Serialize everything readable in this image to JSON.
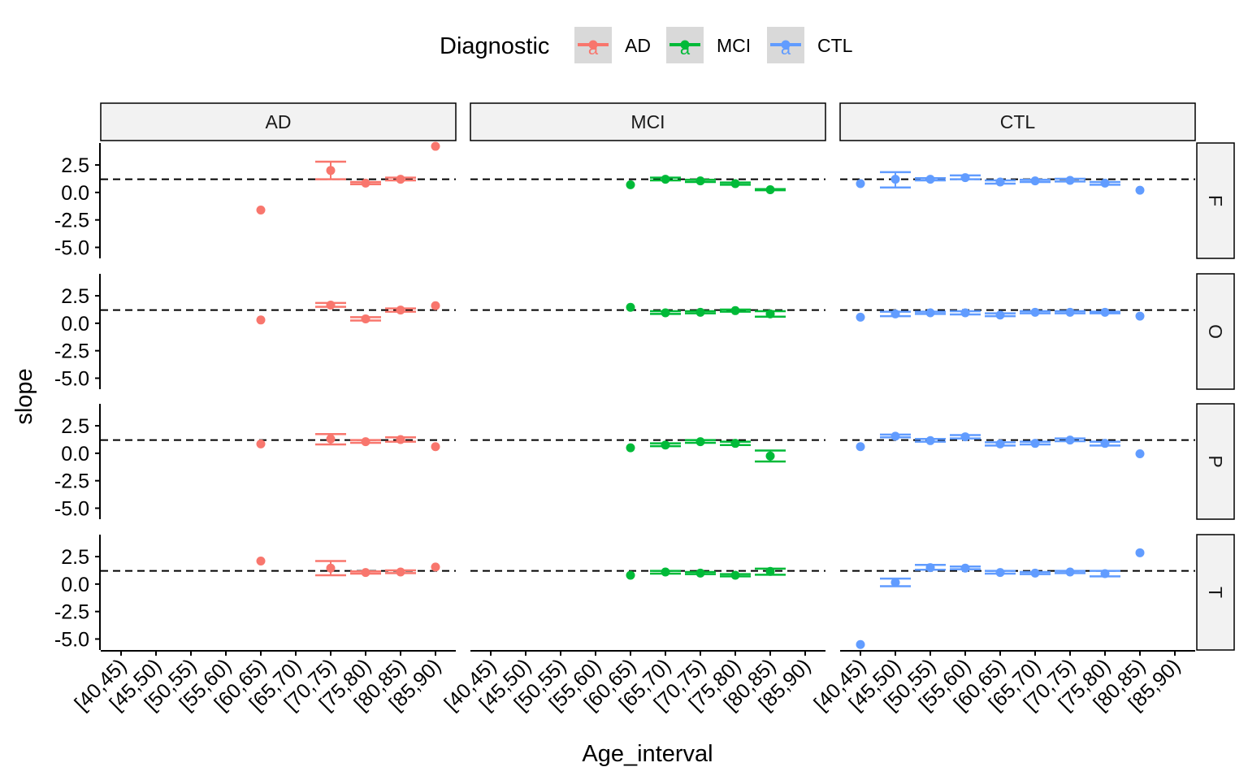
{
  "legend": {
    "title": "Diagnostic",
    "items": [
      {
        "label": "AD",
        "color": "#F8766D",
        "key_glyph": "a"
      },
      {
        "label": "MCI",
        "color": "#00BA38",
        "key_glyph": "a"
      },
      {
        "label": "CTL",
        "color": "#619CFF",
        "key_glyph": "a"
      }
    ]
  },
  "chart_data": {
    "type": "scatter",
    "subtype": "faceted point range with error bars",
    "xlabel": "Age_interval",
    "ylabel": "slope",
    "x_categories": [
      "[40,45)",
      "[45,50)",
      "[50,55)",
      "[55,60)",
      "[60,65)",
      "[65,70)",
      "[70,75)",
      "[75,80)",
      "[80,85)",
      "[85,90)"
    ],
    "y_ticks": [
      "2.5",
      "0.0",
      "-2.5",
      "-5.0"
    ],
    "y_tick_values": [
      2.5,
      0.0,
      -2.5,
      -5.0
    ],
    "ylim": [
      -6.0,
      4.5
    ],
    "reference_line": {
      "y": 1.2,
      "style": "dashed"
    },
    "facet_columns": [
      "AD",
      "MCI",
      "CTL"
    ],
    "facet_rows": [
      "F",
      "O",
      "P",
      "T"
    ],
    "grid": false,
    "legend_position": "top",
    "panels": [
      {
        "column": "AD",
        "row": "F",
        "color": "#F8766D",
        "points": [
          {
            "x": "[60,65)",
            "y": -1.6
          },
          {
            "x": "[70,75)",
            "y": 2.0,
            "ymin": 1.2,
            "ymax": 2.8
          },
          {
            "x": "[75,80)",
            "y": 0.85,
            "ymin": 0.75,
            "ymax": 0.95
          },
          {
            "x": "[80,85)",
            "y": 1.2,
            "ymin": 1.1,
            "ymax": 1.35
          },
          {
            "x": "[85,90)",
            "y": 4.2
          }
        ]
      },
      {
        "column": "MCI",
        "row": "F",
        "color": "#00BA38",
        "points": [
          {
            "x": "[60,65)",
            "y": 0.7
          },
          {
            "x": "[65,70)",
            "y": 1.2,
            "ymin": 1.1,
            "ymax": 1.35
          },
          {
            "x": "[70,75)",
            "y": 1.05,
            "ymin": 0.95,
            "ymax": 1.15
          },
          {
            "x": "[75,80)",
            "y": 0.8,
            "ymin": 0.7,
            "ymax": 0.9
          },
          {
            "x": "[80,85)",
            "y": 0.25,
            "ymin": 0.2,
            "ymax": 0.3
          }
        ]
      },
      {
        "column": "CTL",
        "row": "F",
        "color": "#619CFF",
        "points": [
          {
            "x": "[40,45)",
            "y": 0.8
          },
          {
            "x": "[45,50)",
            "y": 1.2,
            "ymin": 0.45,
            "ymax": 1.85
          },
          {
            "x": "[50,55)",
            "y": 1.2,
            "ymin": 1.1,
            "ymax": 1.3
          },
          {
            "x": "[55,60)",
            "y": 1.35,
            "ymin": 1.2,
            "ymax": 1.55
          },
          {
            "x": "[60,65)",
            "y": 0.95,
            "ymin": 0.8,
            "ymax": 1.1
          },
          {
            "x": "[65,70)",
            "y": 1.05,
            "ymin": 0.95,
            "ymax": 1.15
          },
          {
            "x": "[70,75)",
            "y": 1.1,
            "ymin": 1.0,
            "ymax": 1.25
          },
          {
            "x": "[75,80)",
            "y": 0.85,
            "ymin": 0.7,
            "ymax": 0.95
          },
          {
            "x": "[80,85)",
            "y": 0.2
          }
        ]
      },
      {
        "column": "AD",
        "row": "O",
        "color": "#F8766D",
        "points": [
          {
            "x": "[60,65)",
            "y": 0.3
          },
          {
            "x": "[70,75)",
            "y": 1.65,
            "ymin": 1.5,
            "ymax": 1.85
          },
          {
            "x": "[75,80)",
            "y": 0.4,
            "ymin": 0.25,
            "ymax": 0.55
          },
          {
            "x": "[80,85)",
            "y": 1.2,
            "ymin": 1.05,
            "ymax": 1.35
          },
          {
            "x": "[85,90)",
            "y": 1.6
          }
        ]
      },
      {
        "column": "MCI",
        "row": "O",
        "color": "#00BA38",
        "points": [
          {
            "x": "[60,65)",
            "y": 1.45
          },
          {
            "x": "[65,70)",
            "y": 0.95,
            "ymin": 0.85,
            "ymax": 1.1
          },
          {
            "x": "[70,75)",
            "y": 1.0,
            "ymin": 0.9,
            "ymax": 1.1
          },
          {
            "x": "[75,80)",
            "y": 1.15,
            "ymin": 1.05,
            "ymax": 1.25
          },
          {
            "x": "[80,85)",
            "y": 0.85,
            "ymin": 0.6,
            "ymax": 1.1
          }
        ]
      },
      {
        "column": "CTL",
        "row": "O",
        "color": "#619CFF",
        "points": [
          {
            "x": "[40,45)",
            "y": 0.55
          },
          {
            "x": "[45,50)",
            "y": 0.85,
            "ymin": 0.65,
            "ymax": 1.05
          },
          {
            "x": "[50,55)",
            "y": 0.95,
            "ymin": 0.85,
            "ymax": 1.05
          },
          {
            "x": "[55,60)",
            "y": 0.95,
            "ymin": 0.8,
            "ymax": 1.1
          },
          {
            "x": "[60,65)",
            "y": 0.75,
            "ymin": 0.65,
            "ymax": 0.9
          },
          {
            "x": "[65,70)",
            "y": 1.0,
            "ymin": 0.9,
            "ymax": 1.1
          },
          {
            "x": "[70,75)",
            "y": 1.0,
            "ymin": 0.9,
            "ymax": 1.1
          },
          {
            "x": "[75,80)",
            "y": 1.0,
            "ymin": 0.9,
            "ymax": 1.05
          },
          {
            "x": "[80,85)",
            "y": 0.65
          }
        ]
      },
      {
        "column": "AD",
        "row": "P",
        "color": "#F8766D",
        "points": [
          {
            "x": "[60,65)",
            "y": 0.85
          },
          {
            "x": "[70,75)",
            "y": 1.3,
            "ymin": 0.8,
            "ymax": 1.75
          },
          {
            "x": "[75,80)",
            "y": 1.05,
            "ymin": 0.95,
            "ymax": 1.2
          },
          {
            "x": "[80,85)",
            "y": 1.25,
            "ymin": 1.05,
            "ymax": 1.45
          },
          {
            "x": "[85,90)",
            "y": 0.6
          }
        ]
      },
      {
        "column": "MCI",
        "row": "P",
        "color": "#00BA38",
        "points": [
          {
            "x": "[60,65)",
            "y": 0.5
          },
          {
            "x": "[65,70)",
            "y": 0.75,
            "ymin": 0.65,
            "ymax": 0.9
          },
          {
            "x": "[70,75)",
            "y": 1.05,
            "ymin": 0.95,
            "ymax": 1.2
          },
          {
            "x": "[75,80)",
            "y": 0.9,
            "ymin": 0.75,
            "ymax": 1.05
          },
          {
            "x": "[80,85)",
            "y": -0.25,
            "ymin": -0.75,
            "ymax": 0.25
          }
        ]
      },
      {
        "column": "CTL",
        "row": "P",
        "color": "#619CFF",
        "points": [
          {
            "x": "[40,45)",
            "y": 0.6
          },
          {
            "x": "[45,50)",
            "y": 1.55,
            "ymin": 1.45,
            "ymax": 1.7
          },
          {
            "x": "[50,55)",
            "y": 1.15,
            "ymin": 1.05,
            "ymax": 1.3
          },
          {
            "x": "[55,60)",
            "y": 1.5,
            "ymin": 1.35,
            "ymax": 1.65
          },
          {
            "x": "[60,65)",
            "y": 0.85,
            "ymin": 0.7,
            "ymax": 1.0
          },
          {
            "x": "[65,70)",
            "y": 0.9,
            "ymin": 0.8,
            "ymax": 1.05
          },
          {
            "x": "[70,75)",
            "y": 1.2,
            "ymin": 1.1,
            "ymax": 1.35
          },
          {
            "x": "[75,80)",
            "y": 0.9,
            "ymin": 0.7,
            "ymax": 1.05
          },
          {
            "x": "[80,85)",
            "y": -0.05
          }
        ]
      },
      {
        "column": "AD",
        "row": "T",
        "color": "#F8766D",
        "points": [
          {
            "x": "[60,65)",
            "y": 2.1
          },
          {
            "x": "[70,75)",
            "y": 1.45,
            "ymin": 0.8,
            "ymax": 2.1
          },
          {
            "x": "[75,80)",
            "y": 1.05,
            "ymin": 0.95,
            "ymax": 1.15
          },
          {
            "x": "[80,85)",
            "y": 1.1,
            "ymin": 1.0,
            "ymax": 1.25
          },
          {
            "x": "[85,90)",
            "y": 1.55
          }
        ]
      },
      {
        "column": "MCI",
        "row": "T",
        "color": "#00BA38",
        "points": [
          {
            "x": "[60,65)",
            "y": 0.8
          },
          {
            "x": "[65,70)",
            "y": 1.1,
            "ymin": 0.95,
            "ymax": 1.2
          },
          {
            "x": "[70,75)",
            "y": 1.0,
            "ymin": 0.9,
            "ymax": 1.1
          },
          {
            "x": "[75,80)",
            "y": 0.8,
            "ymin": 0.7,
            "ymax": 0.9
          },
          {
            "x": "[80,85)",
            "y": 1.15,
            "ymin": 0.85,
            "ymax": 1.4
          }
        ]
      },
      {
        "column": "CTL",
        "row": "T",
        "color": "#619CFF",
        "points": [
          {
            "x": "[40,45)",
            "y": -5.5
          },
          {
            "x": "[45,50)",
            "y": 0.15,
            "ymin": -0.2,
            "ymax": 0.5
          },
          {
            "x": "[50,55)",
            "y": 1.5,
            "ymin": 1.3,
            "ymax": 1.75
          },
          {
            "x": "[55,60)",
            "y": 1.45,
            "ymin": 1.35,
            "ymax": 1.6
          },
          {
            "x": "[60,65)",
            "y": 1.05,
            "ymin": 0.95,
            "ymax": 1.2
          },
          {
            "x": "[65,70)",
            "y": 1.0,
            "ymin": 0.9,
            "ymax": 1.1
          },
          {
            "x": "[70,75)",
            "y": 1.1,
            "ymin": 1.0,
            "ymax": 1.2
          },
          {
            "x": "[75,80)",
            "y": 0.95,
            "ymin": 0.7,
            "ymax": 1.2
          },
          {
            "x": "[80,85)",
            "y": 2.85
          }
        ]
      }
    ]
  }
}
